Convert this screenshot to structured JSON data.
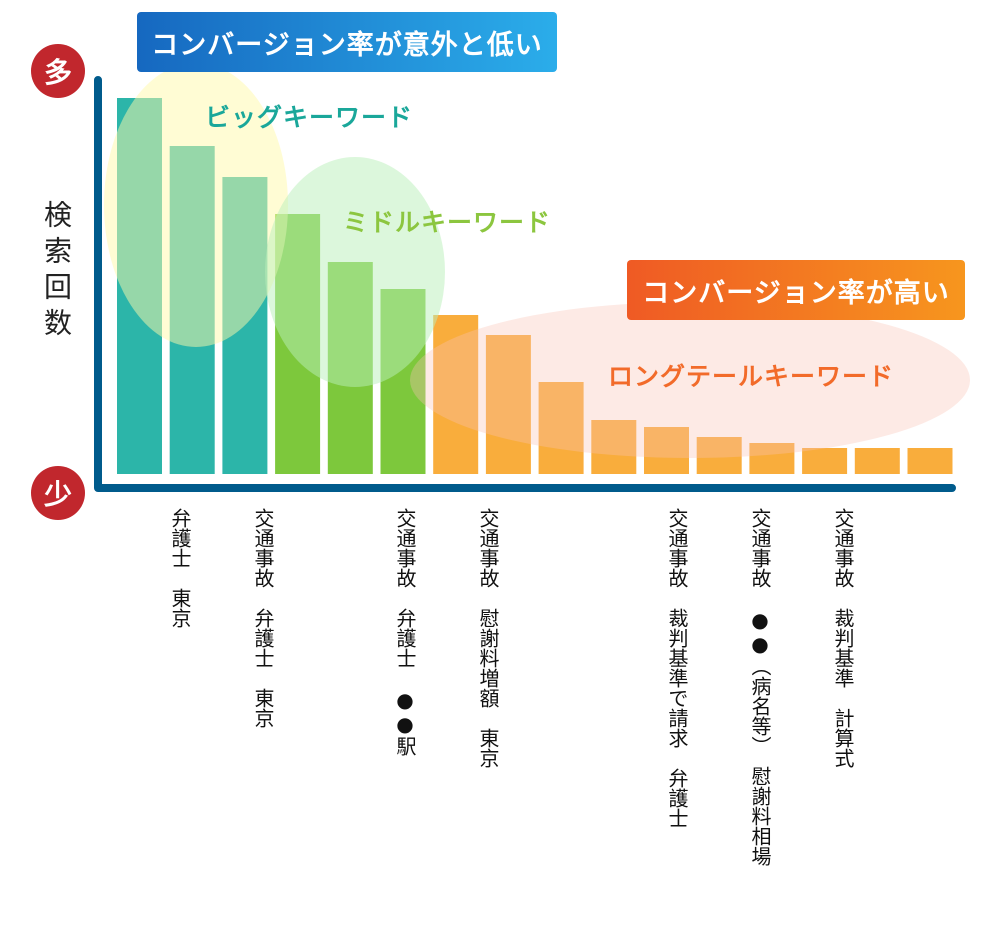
{
  "chart_data": {
    "type": "bar",
    "title": "",
    "ylabel": "検索回数",
    "y_top_label": "多",
    "y_bottom_label": "少",
    "ylim": [
      0,
      400
    ],
    "grid": false,
    "values": [
      376,
      328,
      297,
      260,
      212,
      185,
      159,
      139,
      92,
      54,
      47,
      37,
      31,
      26,
      26,
      26
    ],
    "bar_colors": [
      "#2cb5a9",
      "#2cb5a9",
      "#2cb5a9",
      "#7dc83c",
      "#7dc83c",
      "#7dc83c",
      "#f9ad3c",
      "#f9ad3c",
      "#f9ad3c",
      "#f9ad3c",
      "#f9ad3c",
      "#f9ad3c",
      "#f9ad3c",
      "#f9ad3c",
      "#f9ad3c",
      "#f9ad3c"
    ],
    "x_labels": [
      "弁護士　東京",
      "交通事故　弁護士　東京",
      "交通事故　弁護士　●●駅",
      "交通事故　慰謝料増額　東京",
      "交通事故　裁判基準で請求　弁護士",
      "交通事故　●●（病名等）　慰謝料相場",
      "交通事故　裁判基準　計算式"
    ],
    "annotations": {
      "low_conversion": "コンバージョン率が意外と低い",
      "high_conversion": "コンバージョン率が高い",
      "big_keyword": "ビッグキーワード",
      "middle_keyword": "ミドルキーワード",
      "longtail_keyword": "ロングテールキーワード"
    },
    "colors": {
      "axis": "#005b8c",
      "marker": "#c1272d",
      "big": "#1aa79a",
      "middle": "#8cc63f",
      "longtail": "#f26b2a"
    }
  }
}
